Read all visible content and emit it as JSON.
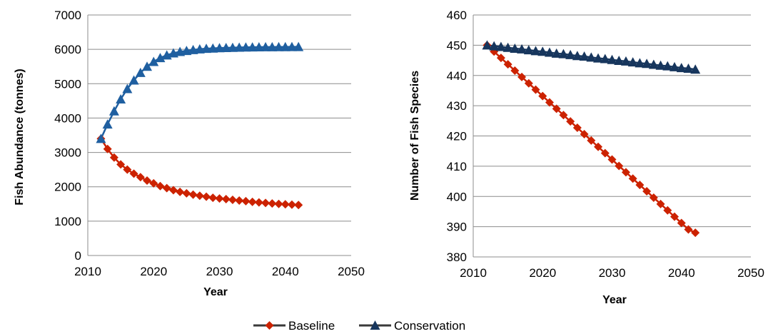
{
  "chart_data": [
    {
      "type": "line",
      "title": "",
      "xlabel": "Year",
      "ylabel": "Fish Abundance (tonnes)",
      "xlim": [
        2010,
        2050
      ],
      "ylim": [
        0,
        7000
      ],
      "xticks": [
        2010,
        2020,
        2030,
        2040,
        2050
      ],
      "yticks": [
        0,
        1000,
        2000,
        3000,
        4000,
        5000,
        6000,
        7000
      ],
      "grid": "horizontal",
      "x_start": 2012,
      "series": [
        {
          "name": "Baseline",
          "color": "#cc2200",
          "marker": "diamond",
          "values": [
            3400,
            3100,
            2850,
            2650,
            2500,
            2380,
            2280,
            2180,
            2100,
            2020,
            1960,
            1900,
            1850,
            1810,
            1770,
            1740,
            1710,
            1680,
            1660,
            1640,
            1620,
            1600,
            1580,
            1560,
            1545,
            1530,
            1515,
            1500,
            1490,
            1480,
            1470
          ]
        },
        {
          "name": "Conservation",
          "color": "#1f5fa0",
          "marker": "triangle",
          "values": [
            3400,
            3820,
            4200,
            4550,
            4850,
            5100,
            5320,
            5500,
            5640,
            5750,
            5830,
            5890,
            5930,
            5960,
            5985,
            6005,
            6020,
            6030,
            6040,
            6045,
            6050,
            6055,
            6060,
            6062,
            6065,
            6067,
            6068,
            6070,
            6071,
            6072,
            6073
          ]
        }
      ]
    },
    {
      "type": "line",
      "title": "",
      "xlabel": "Year",
      "ylabel": "Number of Fish Species",
      "xlim": [
        2010,
        2050
      ],
      "ylim": [
        380,
        460
      ],
      "xticks": [
        2010,
        2020,
        2030,
        2040,
        2050
      ],
      "yticks": [
        380,
        390,
        400,
        410,
        420,
        430,
        440,
        450,
        460
      ],
      "grid": "horizontal",
      "x_start": 2012,
      "series": [
        {
          "name": "Baseline",
          "color": "#cc2200",
          "marker": "diamond",
          "values": [
            450,
            447.9,
            445.8,
            443.7,
            441.6,
            439.5,
            437.4,
            435.3,
            433.2,
            431.1,
            429.0,
            426.9,
            424.8,
            422.7,
            420.6,
            418.5,
            416.4,
            414.3,
            412.2,
            410.1,
            408.0,
            405.9,
            403.8,
            401.7,
            399.6,
            397.5,
            395.4,
            393.3,
            391.2,
            389.1,
            388.0
          ]
        },
        {
          "name": "Conservation",
          "color": "#17365d",
          "marker": "triangle",
          "values": [
            450,
            449.7,
            449.5,
            449.2,
            448.9,
            448.7,
            448.4,
            448.1,
            447.9,
            447.6,
            447.3,
            447.1,
            446.8,
            446.5,
            446.3,
            446.0,
            445.7,
            445.5,
            445.2,
            444.9,
            444.7,
            444.4,
            444.1,
            443.9,
            443.6,
            443.3,
            443.1,
            442.8,
            442.5,
            442.3,
            442.0
          ]
        }
      ]
    }
  ],
  "legend": {
    "position": "bottom",
    "items": [
      {
        "label": "Baseline",
        "color": "#cc2200",
        "line_color": "#3a3a3a",
        "marker": "diamond"
      },
      {
        "label": "Conservation",
        "color": "#17365d",
        "line_color": "#3a3a3a",
        "marker": "triangle"
      }
    ]
  }
}
